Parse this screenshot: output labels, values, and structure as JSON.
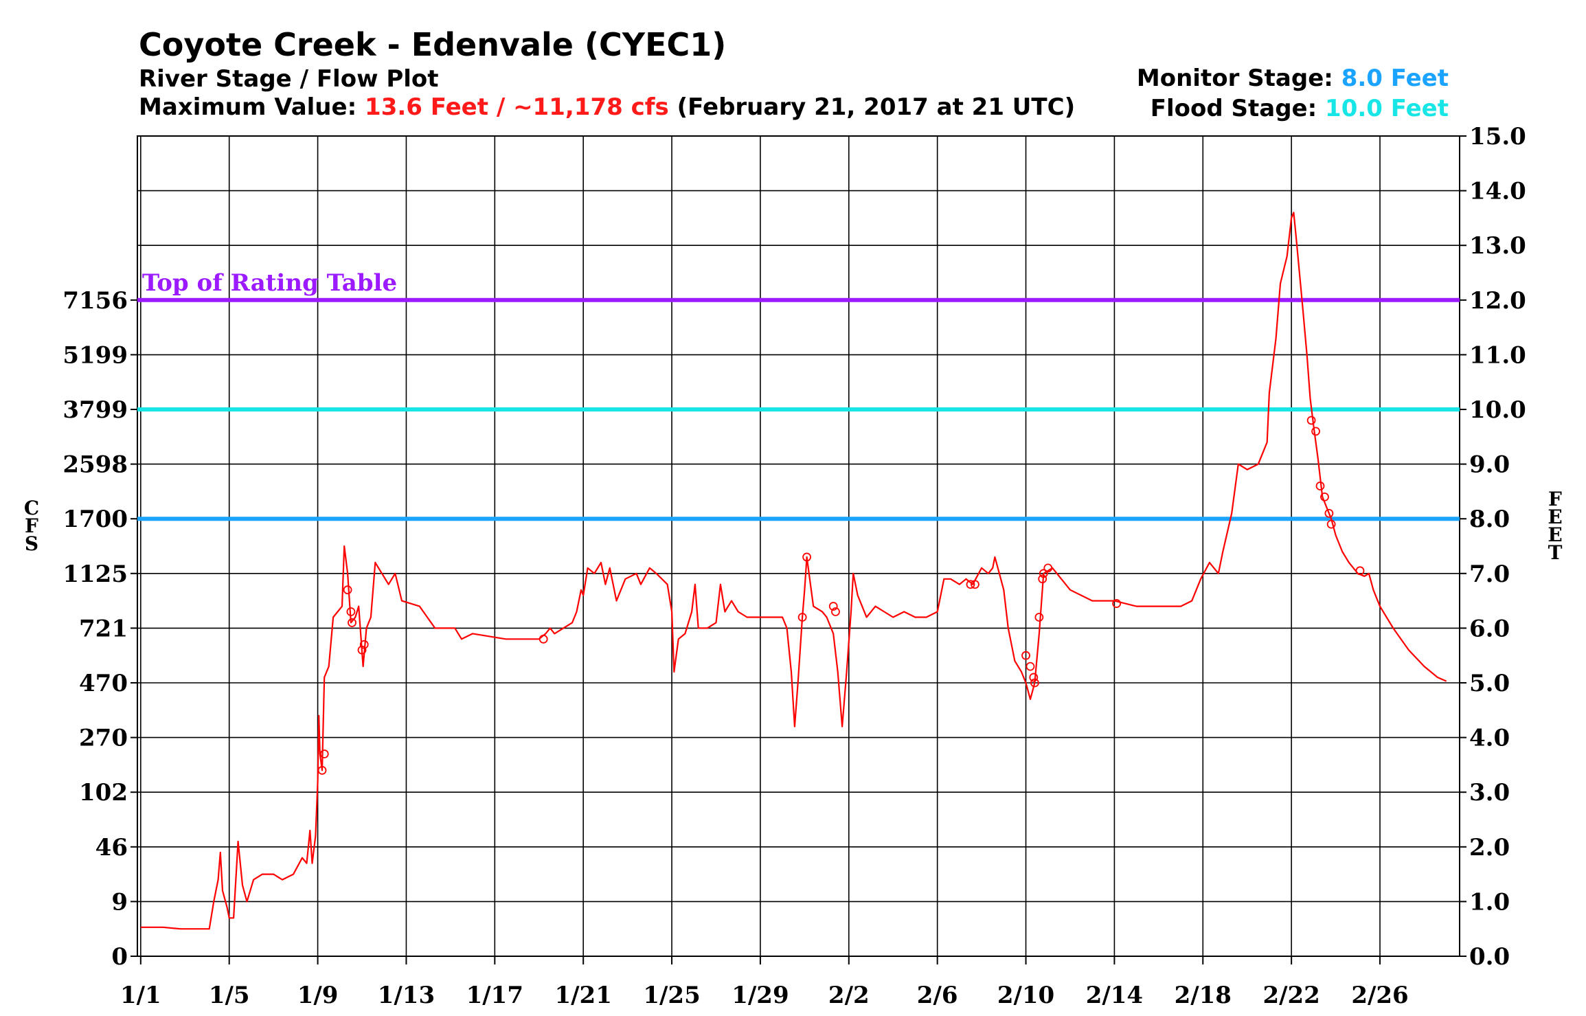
{
  "chart_data": {
    "type": "line",
    "title": "Coyote Creek - Edenvale (CYEC1)",
    "subtitle": "River Stage / Flow Plot",
    "max_value": {
      "label": "Maximum Value:",
      "value_text": "13.6 Feet / ~11,178 cfs",
      "date_text": "(February 21, 2017 at 21 UTC)"
    },
    "monitor_stage": {
      "label": "Monitor Stage:",
      "value_text": "8.0 Feet",
      "value": 8.0,
      "color": "#1aa3ff"
    },
    "flood_stage": {
      "label": "Flood Stage:",
      "value_text": "10.0 Feet",
      "value": 10.0,
      "color": "#18e6e6"
    },
    "rating_table": {
      "label": "Top of Rating Table",
      "value": 12.0,
      "color": "#9b1aff"
    },
    "left_ylabel": "CFS",
    "right_ylabel": "FEET",
    "ylim": [
      0,
      15
    ],
    "y_ticks_feet": [
      "0.0",
      "1.0",
      "2.0",
      "3.0",
      "4.0",
      "5.0",
      "6.0",
      "7.0",
      "8.0",
      "9.0",
      "10.0",
      "11.0",
      "12.0",
      "13.0",
      "14.0",
      "15.0"
    ],
    "y_ticks_cfs": [
      {
        "stage": 0,
        "label": "0"
      },
      {
        "stage": 1,
        "label": "9"
      },
      {
        "stage": 2,
        "label": "46"
      },
      {
        "stage": 3,
        "label": "102"
      },
      {
        "stage": 4,
        "label": "270"
      },
      {
        "stage": 5,
        "label": "470"
      },
      {
        "stage": 6,
        "label": "721"
      },
      {
        "stage": 7,
        "label": "1125"
      },
      {
        "stage": 8,
        "label": "1700"
      },
      {
        "stage": 9,
        "label": "2598"
      },
      {
        "stage": 10,
        "label": "3799"
      },
      {
        "stage": 11,
        "label": "5199"
      },
      {
        "stage": 12,
        "label": "7156"
      }
    ],
    "x_range_days": [
      -0.15,
      59.6
    ],
    "x_tick_labels": [
      {
        "day": 0,
        "label": "1/1"
      },
      {
        "day": 4,
        "label": "1/5"
      },
      {
        "day": 8,
        "label": "1/9"
      },
      {
        "day": 12,
        "label": "1/13"
      },
      {
        "day": 16,
        "label": "1/17"
      },
      {
        "day": 20,
        "label": "1/21"
      },
      {
        "day": 24,
        "label": "1/25"
      },
      {
        "day": 28,
        "label": "1/29"
      },
      {
        "day": 32,
        "label": "2/2"
      },
      {
        "day": 36,
        "label": "2/6"
      },
      {
        "day": 40,
        "label": "2/10"
      },
      {
        "day": 44,
        "label": "2/14"
      },
      {
        "day": 48,
        "label": "2/18"
      },
      {
        "day": 52,
        "label": "2/22"
      },
      {
        "day": 56,
        "label": "2/26"
      }
    ],
    "series": [
      {
        "color": "#ff0000",
        "points": [
          [
            0.0,
            0.53
          ],
          [
            1.0,
            0.53
          ],
          [
            1.8,
            0.5
          ],
          [
            2.5,
            0.5
          ],
          [
            3.1,
            0.5
          ],
          [
            3.3,
            1.0
          ],
          [
            3.5,
            1.4
          ],
          [
            3.6,
            1.9
          ],
          [
            3.7,
            1.2
          ],
          [
            3.9,
            0.9
          ],
          [
            4.0,
            0.7
          ],
          [
            4.2,
            0.7
          ],
          [
            4.4,
            2.1
          ],
          [
            4.6,
            1.3
          ],
          [
            4.8,
            1.0
          ],
          [
            5.1,
            1.4
          ],
          [
            5.5,
            1.5
          ],
          [
            6.0,
            1.5
          ],
          [
            6.4,
            1.4
          ],
          [
            6.9,
            1.5
          ],
          [
            7.3,
            1.8
          ],
          [
            7.5,
            1.7
          ],
          [
            7.65,
            2.3
          ],
          [
            7.75,
            1.7
          ],
          [
            7.9,
            2.2
          ],
          [
            8.0,
            3.2
          ],
          [
            8.05,
            4.4
          ],
          [
            8.1,
            3.7
          ],
          [
            8.2,
            3.4
          ],
          [
            8.3,
            5.1
          ],
          [
            8.5,
            5.3
          ],
          [
            8.7,
            6.2
          ],
          [
            8.9,
            6.3
          ],
          [
            9.1,
            6.4
          ],
          [
            9.2,
            7.5
          ],
          [
            9.35,
            7.0
          ],
          [
            9.5,
            6.1
          ],
          [
            9.7,
            6.2
          ],
          [
            9.85,
            6.4
          ],
          [
            10.05,
            5.3
          ],
          [
            10.2,
            6.0
          ],
          [
            10.4,
            6.2
          ],
          [
            10.6,
            7.2
          ],
          [
            11.2,
            6.8
          ],
          [
            11.5,
            7.0
          ],
          [
            11.8,
            6.5
          ],
          [
            12.6,
            6.4
          ],
          [
            13.3,
            6.0
          ],
          [
            14.2,
            6.0
          ],
          [
            14.5,
            5.8
          ],
          [
            15.0,
            5.9
          ],
          [
            16.5,
            5.8
          ],
          [
            18.0,
            5.8
          ],
          [
            18.3,
            5.9
          ],
          [
            18.5,
            6.0
          ],
          [
            18.7,
            5.9
          ],
          [
            19.1,
            6.0
          ],
          [
            19.5,
            6.1
          ],
          [
            19.7,
            6.3
          ],
          [
            19.9,
            6.7
          ],
          [
            20.0,
            6.6
          ],
          [
            20.2,
            7.1
          ],
          [
            20.5,
            7.0
          ],
          [
            20.8,
            7.2
          ],
          [
            21.0,
            6.8
          ],
          [
            21.2,
            7.1
          ],
          [
            21.5,
            6.5
          ],
          [
            21.9,
            6.9
          ],
          [
            22.4,
            7.0
          ],
          [
            22.6,
            6.8
          ],
          [
            23.0,
            7.1
          ],
          [
            23.3,
            7.0
          ],
          [
            23.8,
            6.8
          ],
          [
            24.0,
            6.3
          ],
          [
            24.1,
            5.2
          ],
          [
            24.3,
            5.8
          ],
          [
            24.6,
            5.9
          ],
          [
            24.9,
            6.3
          ],
          [
            25.05,
            6.8
          ],
          [
            25.2,
            6.0
          ],
          [
            25.6,
            6.0
          ],
          [
            26.0,
            6.1
          ],
          [
            26.2,
            6.8
          ],
          [
            26.4,
            6.3
          ],
          [
            26.7,
            6.5
          ],
          [
            27.0,
            6.3
          ],
          [
            27.4,
            6.2
          ],
          [
            28.0,
            6.2
          ],
          [
            29.0,
            6.2
          ],
          [
            29.2,
            6.0
          ],
          [
            29.4,
            5.2
          ],
          [
            29.55,
            4.2
          ],
          [
            29.7,
            5.0
          ],
          [
            29.9,
            6.2
          ],
          [
            30.0,
            6.7
          ],
          [
            30.1,
            7.3
          ],
          [
            30.4,
            6.4
          ],
          [
            30.8,
            6.3
          ],
          [
            31.0,
            6.2
          ],
          [
            31.3,
            5.9
          ],
          [
            31.5,
            5.2
          ],
          [
            31.7,
            4.2
          ],
          [
            31.9,
            5.2
          ],
          [
            32.1,
            6.3
          ],
          [
            32.2,
            7.0
          ],
          [
            32.4,
            6.6
          ],
          [
            32.8,
            6.2
          ],
          [
            33.2,
            6.4
          ],
          [
            33.6,
            6.3
          ],
          [
            34.0,
            6.2
          ],
          [
            34.5,
            6.3
          ],
          [
            35.0,
            6.2
          ],
          [
            35.5,
            6.2
          ],
          [
            36.0,
            6.3
          ],
          [
            36.3,
            6.9
          ],
          [
            36.6,
            6.9
          ],
          [
            37.0,
            6.8
          ],
          [
            37.3,
            6.9
          ],
          [
            37.6,
            6.8
          ],
          [
            38.0,
            7.1
          ],
          [
            38.3,
            7.0
          ],
          [
            38.5,
            7.1
          ],
          [
            38.6,
            7.3
          ],
          [
            38.8,
            7.0
          ],
          [
            39.0,
            6.7
          ],
          [
            39.2,
            6.0
          ],
          [
            39.5,
            5.4
          ],
          [
            39.8,
            5.2
          ],
          [
            40.0,
            5.0
          ],
          [
            40.2,
            4.7
          ],
          [
            40.4,
            5.0
          ],
          [
            40.6,
            5.9
          ],
          [
            40.8,
            7.0
          ],
          [
            41.2,
            7.1
          ],
          [
            42.0,
            6.7
          ],
          [
            43.0,
            6.5
          ],
          [
            44.0,
            6.5
          ],
          [
            45.0,
            6.4
          ],
          [
            46.0,
            6.4
          ],
          [
            47.0,
            6.4
          ],
          [
            47.5,
            6.5
          ],
          [
            47.9,
            6.9
          ],
          [
            48.3,
            7.2
          ],
          [
            48.7,
            7.0
          ],
          [
            48.9,
            7.4
          ],
          [
            49.3,
            8.1
          ],
          [
            49.6,
            9.0
          ],
          [
            50.0,
            8.9
          ],
          [
            50.5,
            9.0
          ],
          [
            50.9,
            9.4
          ],
          [
            51.0,
            10.3
          ],
          [
            51.3,
            11.3
          ],
          [
            51.5,
            12.3
          ],
          [
            51.8,
            12.8
          ],
          [
            52.0,
            13.5
          ],
          [
            52.1,
            13.6
          ],
          [
            52.2,
            13.2
          ],
          [
            52.5,
            11.9
          ],
          [
            52.7,
            11.0
          ],
          [
            52.85,
            10.2
          ],
          [
            53.0,
            9.7
          ],
          [
            53.2,
            9.1
          ],
          [
            53.4,
            8.4
          ],
          [
            53.6,
            8.2
          ],
          [
            53.8,
            8.0
          ],
          [
            54.0,
            7.7
          ],
          [
            54.3,
            7.4
          ],
          [
            54.6,
            7.2
          ],
          [
            55.0,
            7.0
          ],
          [
            55.3,
            6.95
          ],
          [
            55.5,
            7.0
          ],
          [
            55.7,
            6.7
          ],
          [
            56.0,
            6.4
          ],
          [
            56.6,
            6.0
          ],
          [
            57.3,
            5.6
          ],
          [
            58.0,
            5.3
          ],
          [
            58.6,
            5.1
          ],
          [
            59.0,
            5.03
          ]
        ],
        "markers": [
          [
            8.2,
            3.4
          ],
          [
            8.3,
            3.7
          ],
          [
            9.35,
            6.7
          ],
          [
            9.5,
            6.3
          ],
          [
            9.55,
            6.1
          ],
          [
            10.0,
            5.6
          ],
          [
            10.1,
            5.7
          ],
          [
            18.2,
            5.8
          ],
          [
            29.9,
            6.2
          ],
          [
            30.1,
            7.3
          ],
          [
            31.3,
            6.4
          ],
          [
            31.4,
            6.3
          ],
          [
            37.5,
            6.8
          ],
          [
            37.7,
            6.8
          ],
          [
            40.0,
            5.5
          ],
          [
            40.2,
            5.3
          ],
          [
            40.35,
            5.1
          ],
          [
            40.4,
            5.0
          ],
          [
            40.6,
            6.2
          ],
          [
            40.75,
            6.9
          ],
          [
            40.8,
            7.0
          ],
          [
            41.0,
            7.1
          ],
          [
            44.1,
            6.45
          ],
          [
            52.9,
            9.8
          ],
          [
            53.1,
            9.6
          ],
          [
            53.3,
            8.6
          ],
          [
            53.5,
            8.4
          ],
          [
            53.7,
            8.1
          ],
          [
            53.8,
            7.9
          ],
          [
            55.1,
            7.05
          ]
        ]
      }
    ],
    "grid": true,
    "legend": "none"
  }
}
